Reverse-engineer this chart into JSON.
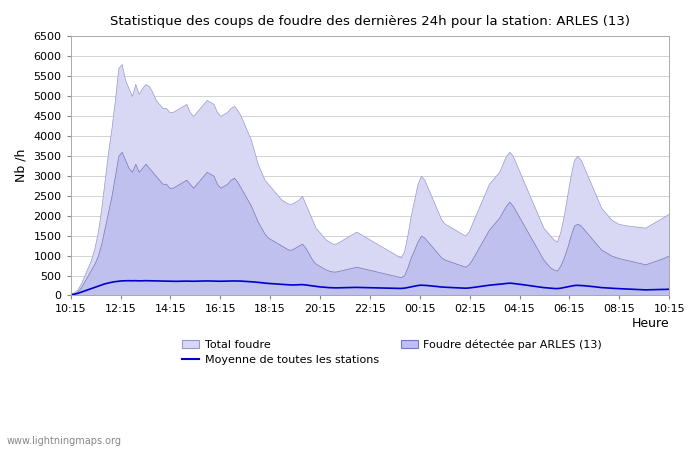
{
  "title": "Statistique des coups de foudre des dernières 24h pour la station: ARLES (13)",
  "ylabel": "Nb /h",
  "ylim": [
    0,
    6500
  ],
  "yticks": [
    0,
    500,
    1000,
    1500,
    2000,
    2500,
    3000,
    3500,
    4000,
    4500,
    5000,
    5500,
    6000,
    6500
  ],
  "x_labels": [
    "10:15",
    "12:15",
    "14:15",
    "16:15",
    "18:15",
    "20:15",
    "22:15",
    "00:15",
    "02:15",
    "04:15",
    "06:15",
    "08:15",
    "10:15"
  ],
  "xlabel_right": "Heure",
  "watermark": "www.lightningmaps.org",
  "total_foudre_color": "#d8d8f5",
  "total_foudre_edge": "#9999cc",
  "arles_color": "#c0c0ee",
  "arles_edge": "#7777bb",
  "moyenne_color": "#0000cc",
  "total_foudre": [
    50,
    80,
    150,
    300,
    500,
    700,
    900,
    1200,
    1600,
    2200,
    2900,
    3600,
    4200,
    4900,
    5700,
    5800,
    5400,
    5200,
    5000,
    5300,
    5050,
    5200,
    5300,
    5250,
    5100,
    4900,
    4800,
    4700,
    4700,
    4600,
    4600,
    4650,
    4700,
    4750,
    4800,
    4600,
    4500,
    4600,
    4700,
    4800,
    4900,
    4850,
    4800,
    4600,
    4500,
    4550,
    4600,
    4700,
    4750,
    4650,
    4500,
    4300,
    4100,
    3900,
    3600,
    3300,
    3100,
    2900,
    2800,
    2700,
    2600,
    2500,
    2400,
    2350,
    2300,
    2300,
    2350,
    2400,
    2500,
    2300,
    2100,
    1900,
    1700,
    1600,
    1500,
    1400,
    1350,
    1300,
    1300,
    1350,
    1400,
    1450,
    1500,
    1550,
    1600,
    1550,
    1500,
    1450,
    1400,
    1350,
    1300,
    1250,
    1200,
    1150,
    1100,
    1050,
    1000,
    950,
    1100,
    1500,
    2000,
    2400,
    2800,
    3000,
    2900,
    2700,
    2500,
    2300,
    2100,
    1900,
    1800,
    1750,
    1700,
    1650,
    1600,
    1550,
    1500,
    1600,
    1800,
    2000,
    2200,
    2400,
    2600,
    2800,
    2900,
    3000,
    3100,
    3300,
    3500,
    3600,
    3500,
    3300,
    3100,
    2900,
    2700,
    2500,
    2300,
    2100,
    1900,
    1700,
    1600,
    1500,
    1400,
    1350,
    1600,
    2000,
    2500,
    3000,
    3400,
    3500,
    3400,
    3200,
    3000,
    2800,
    2600,
    2400,
    2200,
    2100,
    2000,
    1900,
    1850,
    1800,
    1780,
    1760,
    1750,
    1740,
    1730,
    1720,
    1710,
    1700,
    1750,
    1800,
    1850,
    1900,
    1950,
    2000,
    2050
  ],
  "arles_foudre": [
    30,
    50,
    100,
    200,
    350,
    500,
    650,
    800,
    1000,
    1300,
    1700,
    2100,
    2500,
    3000,
    3500,
    3600,
    3400,
    3200,
    3100,
    3300,
    3100,
    3200,
    3300,
    3200,
    3100,
    3000,
    2900,
    2800,
    2800,
    2700,
    2700,
    2750,
    2800,
    2850,
    2900,
    2800,
    2700,
    2800,
    2900,
    3000,
    3100,
    3050,
    3000,
    2800,
    2700,
    2750,
    2800,
    2900,
    2950,
    2850,
    2700,
    2550,
    2400,
    2250,
    2050,
    1850,
    1700,
    1550,
    1450,
    1400,
    1350,
    1300,
    1250,
    1200,
    1150,
    1150,
    1200,
    1250,
    1300,
    1200,
    1050,
    900,
    800,
    750,
    700,
    650,
    620,
    600,
    600,
    620,
    640,
    660,
    680,
    700,
    720,
    700,
    680,
    660,
    640,
    620,
    600,
    580,
    560,
    540,
    520,
    500,
    480,
    460,
    500,
    700,
    950,
    1150,
    1350,
    1500,
    1450,
    1350,
    1250,
    1150,
    1050,
    950,
    900,
    870,
    840,
    810,
    780,
    750,
    720,
    780,
    900,
    1050,
    1200,
    1350,
    1500,
    1650,
    1750,
    1850,
    1950,
    2100,
    2250,
    2350,
    2250,
    2100,
    1950,
    1800,
    1650,
    1500,
    1350,
    1200,
    1050,
    900,
    800,
    700,
    650,
    620,
    750,
    950,
    1200,
    1500,
    1750,
    1800,
    1750,
    1650,
    1550,
    1450,
    1350,
    1250,
    1150,
    1100,
    1050,
    1000,
    970,
    940,
    920,
    900,
    880,
    860,
    840,
    820,
    800,
    780,
    810,
    840,
    870,
    900,
    930,
    970,
    1000
  ],
  "moyenne": [
    20,
    30,
    50,
    80,
    110,
    140,
    170,
    200,
    230,
    260,
    290,
    310,
    330,
    345,
    355,
    365,
    368,
    370,
    368,
    370,
    365,
    368,
    370,
    368,
    365,
    362,
    360,
    358,
    356,
    354,
    352,
    354,
    356,
    358,
    360,
    358,
    356,
    358,
    360,
    362,
    364,
    362,
    360,
    358,
    356,
    358,
    360,
    362,
    364,
    362,
    360,
    355,
    350,
    345,
    338,
    330,
    320,
    310,
    302,
    296,
    290,
    284,
    278,
    272,
    266,
    262,
    264,
    268,
    272,
    264,
    252,
    240,
    228,
    218,
    210,
    202,
    196,
    192,
    190,
    192,
    194,
    196,
    198,
    200,
    202,
    200,
    198,
    196,
    194,
    192,
    190,
    188,
    186,
    184,
    182,
    180,
    178,
    176,
    182,
    196,
    214,
    232,
    248,
    258,
    254,
    248,
    240,
    232,
    222,
    212,
    206,
    202,
    198,
    194,
    190,
    186,
    182,
    186,
    196,
    208,
    220,
    232,
    244,
    256,
    264,
    272,
    280,
    290,
    300,
    308,
    302,
    292,
    282,
    270,
    258,
    246,
    234,
    222,
    210,
    198,
    190,
    182,
    176,
    172,
    180,
    196,
    214,
    232,
    248,
    254,
    250,
    244,
    236,
    228,
    218,
    208,
    198,
    192,
    186,
    180,
    176,
    172,
    168,
    164,
    160,
    156,
    152,
    148,
    144,
    140,
    142,
    144,
    146,
    148,
    150,
    152,
    155
  ]
}
